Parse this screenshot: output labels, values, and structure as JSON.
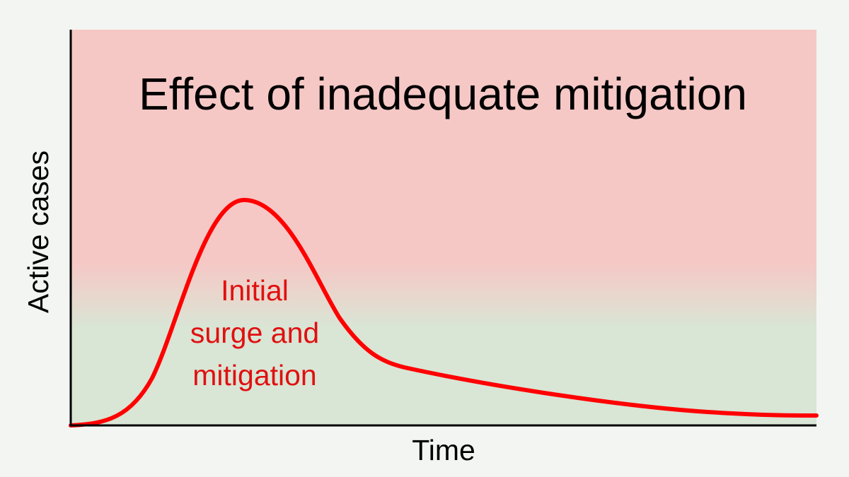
{
  "diagram": {
    "title": "Effect of inadequate mitigation",
    "y_axis_label": "Active cases",
    "x_axis_label": "Time",
    "annotation": {
      "lines": [
        "Initial",
        "surge and",
        "mitigation"
      ]
    },
    "colors": {
      "background": "#f3f5f2",
      "upper_zone": "#f5c8c6",
      "lower_zone": "#d9e5d5",
      "curve": "#ff0000",
      "annotation_text": "#e01010",
      "axes": "#000000",
      "text": "#000000"
    }
  }
}
